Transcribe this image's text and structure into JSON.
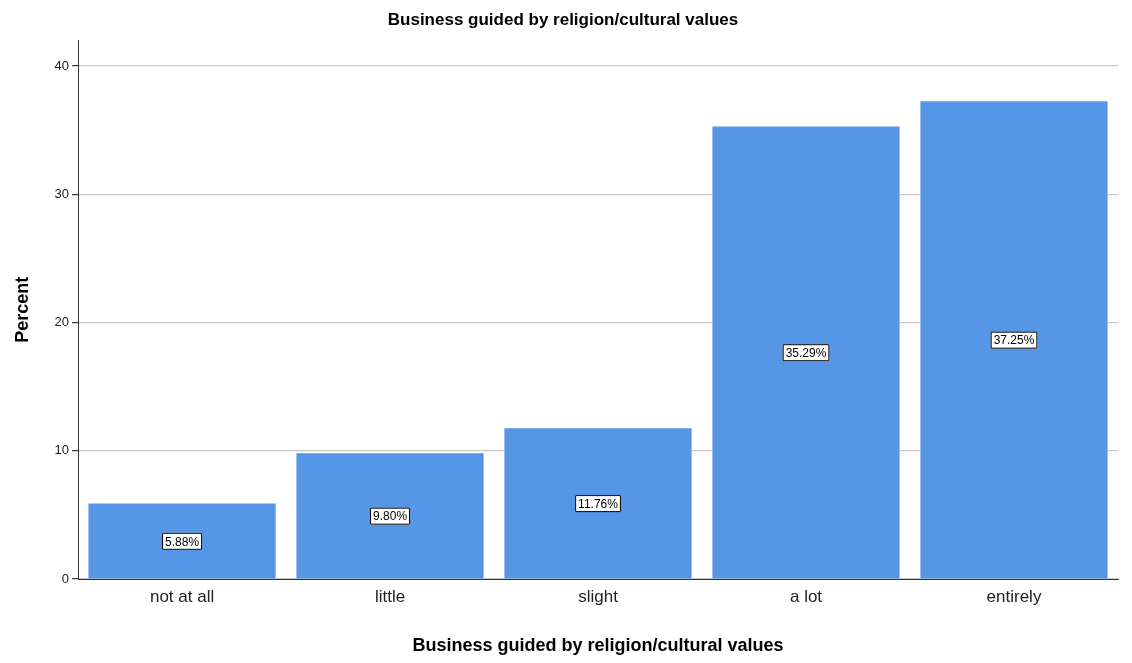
{
  "chart_data": {
    "type": "bar",
    "title": "Business guided by religion/cultural values",
    "xlabel": "Business guided by religion/cultural values",
    "ylabel": "Percent",
    "categories": [
      "not at all",
      "little",
      "slight",
      "a lot",
      "entirely"
    ],
    "values": [
      5.88,
      9.8,
      11.76,
      35.29,
      37.25
    ],
    "value_labels": [
      "5.88%",
      "9.80%",
      "11.76%",
      "35.29%",
      "37.25%"
    ],
    "color": "#5596e6",
    "ylim": [
      0,
      42
    ],
    "yticks": [
      0,
      10,
      20,
      30,
      40
    ],
    "grid": "y"
  }
}
